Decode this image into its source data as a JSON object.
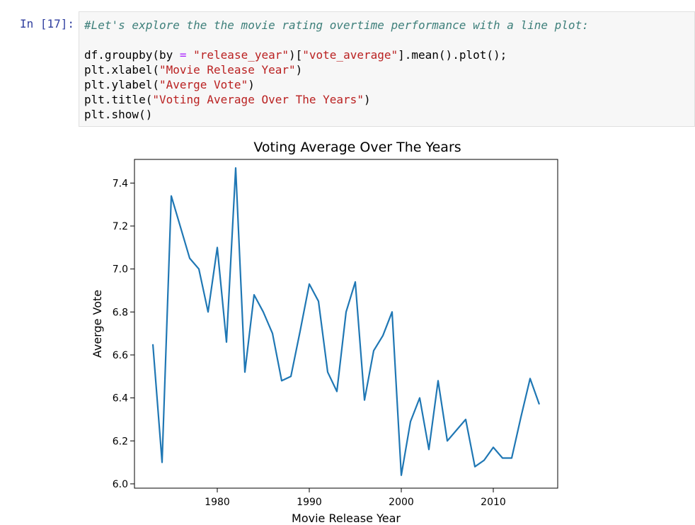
{
  "cell": {
    "prompt": "In [17]:",
    "comment": "#Let's explore the the movie rating overtime performance with a line plot:",
    "lines": [
      {
        "a": "df.groupby(by ",
        "op": "=",
        "b": " ",
        "s": "\"release_year\"",
        "c": ")[",
        "s2": "\"vote_average\"",
        "d": "].mean().plot();"
      },
      {
        "a": "plt.xlabel(",
        "s": "\"Movie Release Year\"",
        "c": ")"
      },
      {
        "a": "plt.ylabel(",
        "s": "\"Averge Vote\"",
        "c": ")"
      },
      {
        "a": "plt.title(",
        "s": "\"Voting Average Over The Years\"",
        "c": ")"
      },
      {
        "a": "plt.show()"
      }
    ]
  },
  "colors": {
    "line": "#1f77b4",
    "prompt": "#303F9F",
    "comment": "#3D7F7A",
    "string": "#BA2121",
    "operator": "#AA22FF"
  },
  "chart_data": {
    "type": "line",
    "title": "Voting Average Over The Years",
    "xlabel": "Movie Release Year",
    "ylabel": "Averge Vote",
    "xlim": [
      1971,
      2017
    ],
    "ylim": [
      5.98,
      7.51
    ],
    "xticks": [
      1980,
      1990,
      2000,
      2010
    ],
    "yticks": [
      6.0,
      6.2,
      6.4,
      6.6,
      6.8,
      7.0,
      7.2,
      7.4
    ],
    "ytick_labels": [
      "6.0",
      "6.2",
      "6.4",
      "6.6",
      "6.8",
      "7.0",
      "7.2",
      "7.4"
    ],
    "grid": false,
    "series": [
      {
        "x": [
          1973,
          1974,
          1975,
          1977,
          1978,
          1979,
          1980,
          1981,
          1982,
          1983,
          1984,
          1985,
          1986,
          1987,
          1988,
          1989,
          1990,
          1991,
          1992,
          1993,
          1994,
          1995,
          1996,
          1997,
          1998,
          1999,
          2000,
          2001,
          2002,
          2003,
          2004,
          2005,
          2006,
          2007,
          2008,
          2009,
          2010,
          2011,
          2012,
          2013,
          2014,
          2015
        ],
        "values": [
          6.65,
          6.1,
          7.34,
          7.05,
          7.0,
          6.8,
          7.1,
          6.66,
          7.47,
          6.52,
          6.88,
          6.8,
          6.7,
          6.48,
          6.5,
          6.71,
          6.93,
          6.85,
          6.52,
          6.43,
          6.8,
          6.94,
          6.39,
          6.62,
          6.69,
          6.8,
          6.04,
          6.29,
          6.4,
          6.16,
          6.48,
          6.2,
          6.25,
          6.3,
          6.08,
          6.11,
          6.17,
          6.12,
          6.12,
          6.31,
          6.49,
          6.37
        ]
      }
    ]
  }
}
